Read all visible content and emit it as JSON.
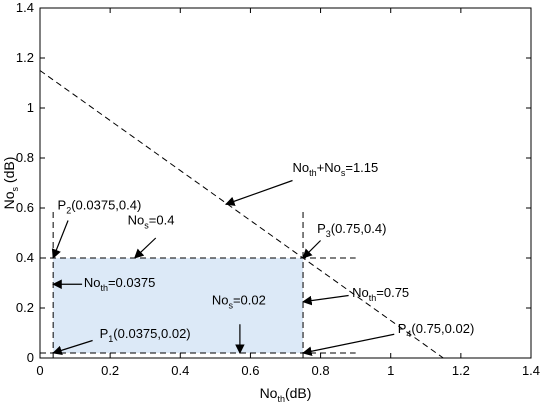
{
  "chart_data": {
    "type": "line",
    "xlabel": {
      "main": "No",
      "sub": "th",
      "tail": "(dB)"
    },
    "ylabel": {
      "main": "No",
      "sub": "s",
      "tail": " (dB)"
    },
    "xlim": [
      0,
      1.4
    ],
    "ylim": [
      0,
      1.4
    ],
    "xticks": [
      0,
      0.2,
      0.4,
      0.6,
      0.8,
      1,
      1.2,
      1.4
    ],
    "yticks": [
      0,
      0.2,
      0.4,
      0.6,
      0.8,
      1,
      1.2,
      1.4
    ],
    "xtick_labels": [
      "0",
      "0.2",
      "0.4",
      "0.6",
      "0.8",
      "1",
      "1.2",
      "1.4"
    ],
    "ytick_labels": [
      "0",
      "0.2",
      "0.4",
      "0.6",
      "0.8",
      "1",
      "1.2",
      "1.4"
    ],
    "fill_color": "#dce9f7",
    "region": {
      "x": [
        0.0375,
        0.75
      ],
      "y": [
        0.02,
        0.4
      ]
    },
    "lines": [
      {
        "x": [
          0,
          1.15
        ],
        "y": [
          1.15,
          0
        ]
      },
      {
        "x": [
          0.0375,
          0.0375
        ],
        "y": [
          0,
          0.6
        ]
      },
      {
        "x": [
          0.75,
          0.75
        ],
        "y": [
          0,
          0.6
        ]
      },
      {
        "x": [
          0,
          0.9
        ],
        "y": [
          0.4,
          0.4
        ]
      },
      {
        "x": [
          0,
          0.9
        ],
        "y": [
          0.02,
          0.02
        ]
      }
    ],
    "annotations": [
      {
        "id": "p2",
        "parts": [
          [
            "P",
            ""
          ],
          [
            "2",
            "sub"
          ],
          [
            "(0.0375,0.4)",
            ""
          ]
        ],
        "text_at": [
          0.05,
          0.595
        ],
        "arrow_from": [
          0.08,
          0.55
        ],
        "arrow_to": [
          0.0375,
          0.4
        ]
      },
      {
        "id": "nos04",
        "parts": [
          [
            "No",
            ""
          ],
          [
            "s",
            "sub"
          ],
          [
            "=0.4",
            ""
          ]
        ],
        "text_at": [
          0.25,
          0.535
        ],
        "arrow_from": [
          0.33,
          0.48
        ],
        "arrow_to": [
          0.27,
          0.4
        ]
      },
      {
        "id": "sum",
        "parts": [
          [
            "No",
            ""
          ],
          [
            "th",
            "sub"
          ],
          [
            "+No",
            ""
          ],
          [
            "s",
            "sub"
          ],
          [
            "=1.15",
            ""
          ]
        ],
        "text_at": [
          0.72,
          0.745
        ],
        "arrow_from": [
          0.72,
          0.71
        ],
        "arrow_to": [
          0.53,
          0.615
        ]
      },
      {
        "id": "p3",
        "parts": [
          [
            "P",
            ""
          ],
          [
            "3",
            "sub"
          ],
          [
            "(0.75,0.4)",
            ""
          ]
        ],
        "text_at": [
          0.79,
          0.5
        ],
        "arrow_from": [
          0.8,
          0.47
        ],
        "arrow_to": [
          0.75,
          0.4
        ]
      },
      {
        "id": "noth0375",
        "parts": [
          [
            "No",
            ""
          ],
          [
            "th",
            "sub"
          ],
          [
            "=0.0375",
            ""
          ]
        ],
        "text_at": [
          0.125,
          0.285
        ],
        "arrow_from": [
          0.12,
          0.295
        ],
        "arrow_to": [
          0.0375,
          0.295
        ]
      },
      {
        "id": "noth075",
        "parts": [
          [
            "No",
            ""
          ],
          [
            "th",
            "sub"
          ],
          [
            "=0.75",
            ""
          ]
        ],
        "text_at": [
          0.89,
          0.245
        ],
        "arrow_from": [
          0.88,
          0.25
        ],
        "arrow_to": [
          0.75,
          0.225
        ]
      },
      {
        "id": "nos002",
        "parts": [
          [
            "No",
            ""
          ],
          [
            "s",
            "sub"
          ],
          [
            "=0.02",
            ""
          ]
        ],
        "text_at": [
          0.49,
          0.215
        ],
        "arrow_from": [
          0.57,
          0.135
        ],
        "arrow_to": [
          0.57,
          0.02
        ]
      },
      {
        "id": "p1",
        "parts": [
          [
            "P",
            ""
          ],
          [
            "1",
            "sub"
          ],
          [
            "(0.0375,0.02)",
            ""
          ]
        ],
        "text_at": [
          0.17,
          0.08
        ],
        "arrow_from": [
          0.15,
          0.07
        ],
        "arrow_to": [
          0.0375,
          0.02
        ]
      },
      {
        "id": "p4",
        "parts": [
          [
            "P",
            ""
          ],
          [
            "4",
            "sub"
          ],
          [
            "(0.75,0.02)",
            ""
          ]
        ],
        "text_at": [
          1.02,
          0.1
        ],
        "arrow_from": [
          1.01,
          0.095
        ],
        "arrow_to": [
          0.75,
          0.02
        ]
      }
    ]
  }
}
